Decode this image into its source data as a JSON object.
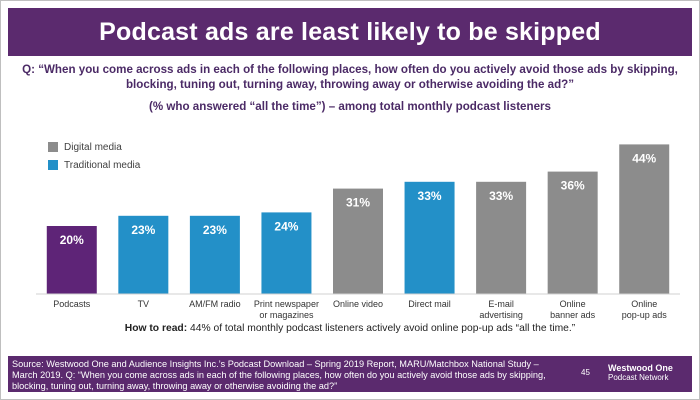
{
  "header": {
    "title": "Podcast ads are least likely to be skipped"
  },
  "question": {
    "line1": "Q: “When you come across ads in each of the following places, how often do you actively avoid those ads by skipping,",
    "line2": "blocking, tuning out, turning away, throwing away or otherwise avoiding the ad?”",
    "sub": "(% who answered “all the time”) – among total monthly podcast listeners"
  },
  "legend": [
    {
      "label": "Digital media",
      "color": "#8c8c8c"
    },
    {
      "label": "Traditional media",
      "color": "#2390c8"
    }
  ],
  "colors": {
    "podcast": "#5e2477",
    "digital": "#8c8c8c",
    "traditional": "#2390c8"
  },
  "chart_data": {
    "type": "bar",
    "title": "Podcast ads are least likely to be skipped",
    "ylabel": "% who answered “all the time”",
    "ylim": [
      0,
      50
    ],
    "categories": [
      "Podcasts",
      "TV",
      "AM/FM radio",
      "Print newspaper or magazines",
      "Online video",
      "Direct mail",
      "E-mail advertising",
      "Online banner ads",
      "Online pop-up ads"
    ],
    "category_lines": [
      [
        "Podcasts"
      ],
      [
        "TV"
      ],
      [
        "AM/FM radio"
      ],
      [
        "Print newspaper",
        "or magazines"
      ],
      [
        "Online video"
      ],
      [
        "Direct mail"
      ],
      [
        "E-mail",
        "advertising"
      ],
      [
        "Online",
        "banner ads"
      ],
      [
        "Online",
        "pop-up ads"
      ]
    ],
    "values": [
      20,
      23,
      23,
      24,
      31,
      33,
      33,
      36,
      44
    ],
    "value_labels": [
      "20%",
      "23%",
      "23%",
      "24%",
      "31%",
      "33%",
      "33%",
      "36%",
      "44%"
    ],
    "media_type": [
      "podcast",
      "traditional",
      "traditional",
      "traditional",
      "digital",
      "traditional",
      "digital",
      "digital",
      "digital"
    ]
  },
  "howto": {
    "bold": "How to read:",
    "text": " 44% of total monthly podcast listeners actively avoid online pop-up ads “all the time.”"
  },
  "footer": {
    "source": "Source: Westwood One and Audience Insights Inc.’s Podcast Download – Spring 2019 Report, MARU/Matchbox National Study – March 2019. Q: “When you come across ads in each of the following places, how often do you actively avoid those ads by skipping, blocking, tuning out, turning away, throwing away or otherwise avoiding the ad?”",
    "page": "45",
    "logo_line1": "Westwood One",
    "logo_line2": "Podcast Network"
  }
}
